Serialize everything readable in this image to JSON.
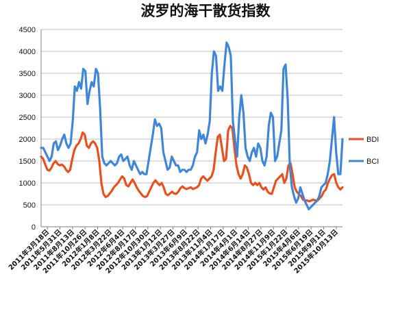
{
  "chart_data": {
    "type": "line",
    "title": "波罗的海干散货指数",
    "ylim": [
      0,
      4500
    ],
    "yticks": [
      0,
      500,
      1000,
      1500,
      2000,
      2500,
      3000,
      3500,
      4000,
      4500
    ],
    "grid": true,
    "legend_position": "right",
    "x_tick_labels": [
      "2011年3月18日",
      "2011年5月31日",
      "2011年8月13日",
      "2011年10月26日",
      "2012年1月8日",
      "2012年3月22日",
      "2012年6月4日",
      "2012年8月17日",
      "2012年10月30日",
      "2013年1月12日",
      "2013年3月27日",
      "2013年6月9日",
      "2013年8月22日",
      "2013年11月4日",
      "2014年1月17日",
      "2014年4月1日",
      "2014年6月14日",
      "2014年8月27日",
      "2014年11月9日",
      "2015年1月22日",
      "2015年4月6日",
      "2015年6月19日",
      "2015年9月1日",
      "2015年10月13日"
    ],
    "series": [
      {
        "name": "BDI",
        "color": "#e8501e",
        "values": [
          1600,
          1550,
          1420,
          1300,
          1280,
          1350,
          1450,
          1500,
          1430,
          1400,
          1420,
          1380,
          1300,
          1250,
          1300,
          1550,
          1750,
          1850,
          1900,
          2000,
          2150,
          2100,
          1850,
          1800,
          1900,
          1950,
          1900,
          1800,
          1500,
          1000,
          750,
          680,
          700,
          760,
          820,
          900,
          950,
          1000,
          1080,
          1150,
          1100,
          950,
          920,
          1000,
          1080,
          1000,
          900,
          820,
          760,
          700,
          680,
          700,
          800,
          900,
          1000,
          1060,
          1000,
          950,
          1000,
          900,
          750,
          720,
          760,
          800,
          760,
          750,
          800,
          880,
          920,
          880,
          860,
          880,
          900,
          860,
          880,
          900,
          950,
          1100,
          1150,
          1100,
          1050,
          1100,
          1150,
          1300,
          1700,
          2050,
          2100,
          1800,
          1500,
          1550,
          2200,
          2300,
          2250,
          1800,
          1400,
          1200,
          1100,
          1200,
          1400,
          1350,
          1200,
          1000,
          950,
          1000,
          950,
          1000,
          900,
          850,
          900,
          800,
          760,
          750,
          900,
          1050,
          1100,
          1150,
          1200,
          1000,
          1100,
          1400,
          1450,
          1200,
          900,
          800,
          750,
          700,
          620,
          600,
          600,
          580,
          600,
          620,
          600,
          600,
          650,
          700,
          800,
          850,
          1000,
          1100,
          1180,
          1200,
          1000,
          900,
          850,
          900
        ]
      },
      {
        "name": "BCI",
        "color": "#3f86d9",
        "values": [
          1800,
          1800,
          1700,
          1600,
          1500,
          1600,
          1900,
          1950,
          1750,
          1850,
          2000,
          2100,
          1900,
          1800,
          1900,
          2400,
          3200,
          3100,
          3300,
          3150,
          3600,
          3550,
          2800,
          3100,
          3300,
          3200,
          3600,
          3500,
          2700,
          1600,
          1450,
          1400,
          1450,
          1500,
          1450,
          1400,
          1450,
          1600,
          1650,
          1500,
          1550,
          1600,
          1400,
          1300,
          1500,
          1400,
          1300,
          1200,
          1250,
          1200,
          1200,
          1500,
          1800,
          2100,
          2450,
          2300,
          2350,
          2250,
          1700,
          1500,
          1300,
          1350,
          1600,
          1500,
          1400,
          1400,
          1250,
          1300,
          1300,
          1250,
          1300,
          1300,
          1400,
          1600,
          1700,
          2200,
          2000,
          2100,
          1900,
          2100,
          2400,
          3500,
          4000,
          3900,
          3100,
          3200,
          3100,
          3700,
          4200,
          4100,
          3900,
          2400,
          2000,
          1600,
          2500,
          3000,
          2600,
          1800,
          1600,
          1500,
          1700,
          1800,
          1600,
          1900,
          1800,
          1500,
          1400,
          1600,
          2300,
          2600,
          2500,
          1500,
          1600,
          1900,
          2200,
          3600,
          3700,
          2900,
          1400,
          900,
          700,
          550,
          650,
          900,
          750,
          600,
          500,
          400,
          450,
          500,
          550,
          600,
          700,
          900,
          950,
          1000,
          1200,
          1500,
          2000,
          2500,
          1700,
          1200,
          1200,
          2000
        ]
      }
    ]
  }
}
